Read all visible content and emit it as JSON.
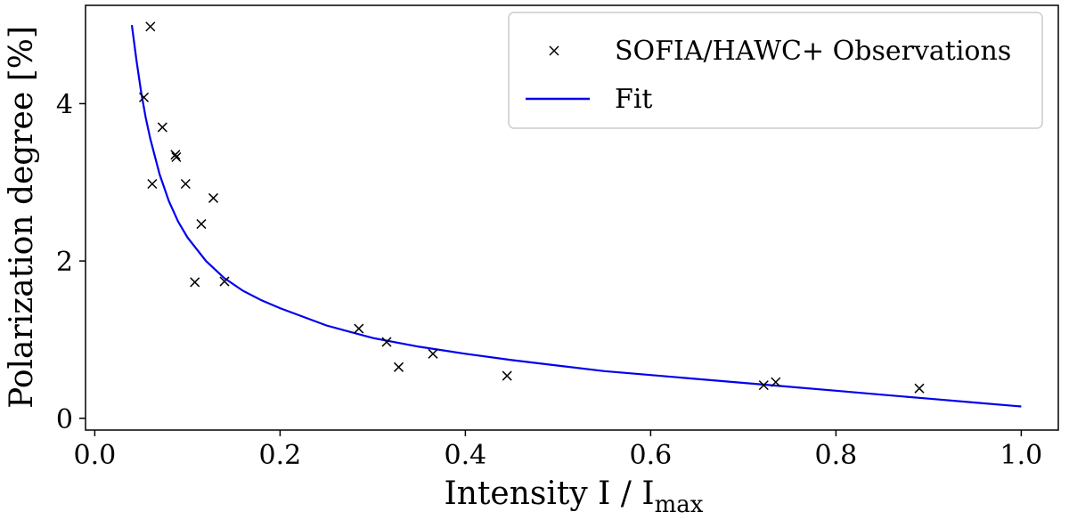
{
  "chart_data": {
    "type": "scatter",
    "title": "",
    "xlabel": "Intensity I / I",
    "xlabel_sub": "max",
    "ylabel": "Polarization degree [%]",
    "xlim": [
      -0.01,
      1.04
    ],
    "ylim": [
      -0.15,
      5.25
    ],
    "xticks": [
      0.0,
      0.2,
      0.4,
      0.6,
      0.8,
      1.0
    ],
    "xtick_labels": [
      "0.0",
      "0.2",
      "0.4",
      "0.6",
      "0.8",
      "1.0"
    ],
    "yticks": [
      0,
      2,
      4
    ],
    "ytick_labels": [
      "0",
      "2",
      "4"
    ],
    "legend_position": "top-right",
    "series": [
      {
        "name": "SOFIA/HAWC+ Observations",
        "kind": "scatter",
        "marker": "x",
        "color": "#000000",
        "x": [
          0.06,
          0.053,
          0.073,
          0.087,
          0.088,
          0.062,
          0.098,
          0.128,
          0.115,
          0.108,
          0.14,
          0.285,
          0.315,
          0.328,
          0.365,
          0.445,
          0.722,
          0.735,
          0.89
        ],
        "y": [
          4.98,
          4.08,
          3.7,
          3.35,
          3.32,
          2.98,
          2.98,
          2.8,
          2.47,
          1.73,
          1.74,
          1.14,
          0.97,
          0.65,
          0.82,
          0.54,
          0.42,
          0.46,
          0.38
        ]
      },
      {
        "name": "Fit",
        "kind": "line",
        "color": "#0000ee",
        "x": [
          0.04,
          0.045,
          0.05,
          0.055,
          0.06,
          0.07,
          0.08,
          0.09,
          0.1,
          0.12,
          0.14,
          0.16,
          0.18,
          0.2,
          0.25,
          0.3,
          0.35,
          0.4,
          0.45,
          0.5,
          0.55,
          0.6,
          0.65,
          0.7,
          0.75,
          0.8,
          0.85,
          0.9,
          0.95,
          1.0
        ],
        "y": [
          5.0,
          4.55,
          4.15,
          3.82,
          3.55,
          3.1,
          2.76,
          2.5,
          2.3,
          2.0,
          1.78,
          1.62,
          1.5,
          1.4,
          1.18,
          1.02,
          0.91,
          0.82,
          0.74,
          0.67,
          0.6,
          0.55,
          0.5,
          0.45,
          0.4,
          0.35,
          0.3,
          0.25,
          0.2,
          0.15
        ]
      }
    ]
  }
}
